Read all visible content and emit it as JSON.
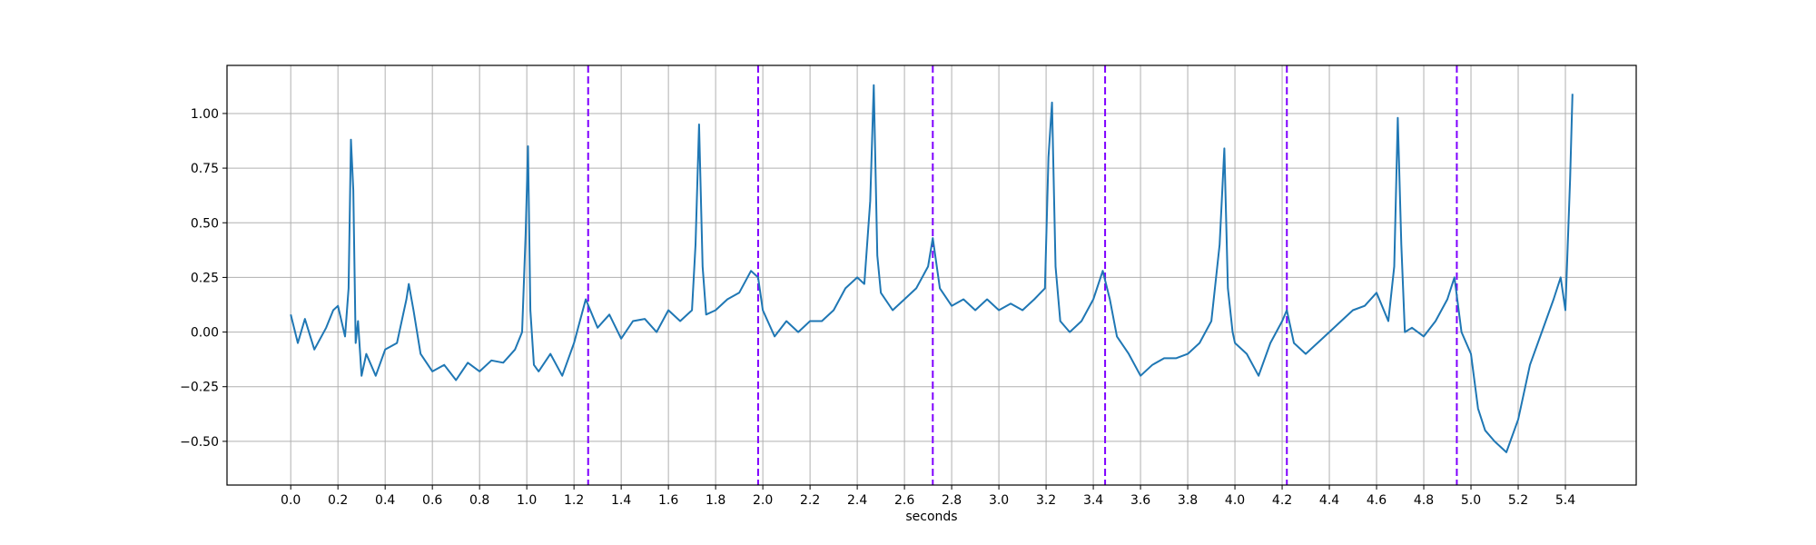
{
  "chart_data": {
    "type": "line",
    "title": "",
    "xlabel": "seconds",
    "ylabel": "",
    "xlim": [
      -0.27,
      5.7
    ],
    "ylim": [
      -0.7,
      1.22
    ],
    "grid": true,
    "xticks": [
      0.0,
      0.2,
      0.4,
      0.6,
      0.8,
      1.0,
      1.2,
      1.4,
      1.6,
      1.8,
      2.0,
      2.2,
      2.4,
      2.6,
      2.8,
      3.0,
      3.2,
      3.4,
      3.6,
      3.8,
      4.0,
      4.2,
      4.4,
      4.6,
      4.8,
      5.0,
      5.2,
      5.4
    ],
    "xtick_labels": [
      "0.0",
      "0.2",
      "0.4",
      "0.6",
      "0.8",
      "1.0",
      "1.2",
      "1.4",
      "1.6",
      "1.8",
      "2.0",
      "2.2",
      "2.4",
      "2.6",
      "2.8",
      "3.0",
      "3.2",
      "3.4",
      "3.6",
      "3.8",
      "4.0",
      "4.2",
      "4.4",
      "4.6",
      "4.8",
      "5.0",
      "5.2",
      "5.4"
    ],
    "yticks": [
      -0.5,
      -0.25,
      0.0,
      0.25,
      0.5,
      0.75,
      1.0
    ],
    "ytick_labels": [
      "−0.50",
      "−0.25",
      "0.00",
      "0.25",
      "0.50",
      "0.75",
      "1.00"
    ],
    "series": [
      {
        "color": "#1f77b4",
        "x": [
          0.0,
          0.03,
          0.06,
          0.1,
          0.15,
          0.18,
          0.2,
          0.23,
          0.245,
          0.255,
          0.265,
          0.275,
          0.285,
          0.3,
          0.32,
          0.36,
          0.4,
          0.45,
          0.49,
          0.5,
          0.52,
          0.55,
          0.6,
          0.65,
          0.7,
          0.75,
          0.8,
          0.85,
          0.9,
          0.95,
          0.98,
          0.995,
          1.005,
          1.015,
          1.03,
          1.05,
          1.1,
          1.15,
          1.2,
          1.25,
          1.3,
          1.35,
          1.4,
          1.45,
          1.5,
          1.55,
          1.6,
          1.65,
          1.7,
          1.715,
          1.73,
          1.745,
          1.76,
          1.8,
          1.85,
          1.9,
          1.95,
          1.98,
          2.0,
          2.05,
          2.1,
          2.15,
          2.2,
          2.25,
          2.3,
          2.35,
          2.4,
          2.43,
          2.455,
          2.47,
          2.485,
          2.5,
          2.55,
          2.6,
          2.65,
          2.7,
          2.72,
          2.75,
          2.8,
          2.85,
          2.9,
          2.95,
          3.0,
          3.05,
          3.1,
          3.15,
          3.195,
          3.21,
          3.225,
          3.24,
          3.26,
          3.3,
          3.35,
          3.4,
          3.44,
          3.47,
          3.5,
          3.55,
          3.6,
          3.65,
          3.7,
          3.75,
          3.8,
          3.85,
          3.9,
          3.935,
          3.955,
          3.97,
          3.99,
          4.0,
          4.05,
          4.1,
          4.15,
          4.2,
          4.22,
          4.25,
          4.3,
          4.35,
          4.4,
          4.45,
          4.5,
          4.55,
          4.6,
          4.65,
          4.675,
          4.69,
          4.705,
          4.72,
          4.75,
          4.8,
          4.85,
          4.9,
          4.93,
          4.96,
          5.0,
          5.03,
          5.06,
          5.1,
          5.15,
          5.2,
          5.25,
          5.3,
          5.35,
          5.38,
          5.4,
          5.42,
          5.43
        ],
        "y": [
          0.08,
          -0.05,
          0.06,
          -0.08,
          0.02,
          0.1,
          0.12,
          -0.02,
          0.2,
          0.88,
          0.65,
          -0.05,
          0.05,
          -0.2,
          -0.1,
          -0.2,
          -0.08,
          -0.05,
          0.15,
          0.22,
          0.1,
          -0.1,
          -0.18,
          -0.15,
          -0.22,
          -0.14,
          -0.18,
          -0.13,
          -0.14,
          -0.08,
          0.0,
          0.45,
          0.85,
          0.1,
          -0.15,
          -0.18,
          -0.1,
          -0.2,
          -0.05,
          0.15,
          0.02,
          0.08,
          -0.03,
          0.05,
          0.06,
          0.0,
          0.1,
          0.05,
          0.1,
          0.4,
          0.95,
          0.3,
          0.08,
          0.1,
          0.15,
          0.18,
          0.28,
          0.25,
          0.1,
          -0.02,
          0.05,
          0.0,
          0.05,
          0.05,
          0.1,
          0.2,
          0.25,
          0.22,
          0.6,
          1.13,
          0.35,
          0.18,
          0.1,
          0.15,
          0.2,
          0.3,
          0.43,
          0.2,
          0.12,
          0.15,
          0.1,
          0.15,
          0.1,
          0.13,
          0.1,
          0.15,
          0.2,
          0.8,
          1.05,
          0.3,
          0.05,
          0.0,
          0.05,
          0.15,
          0.28,
          0.15,
          -0.02,
          -0.1,
          -0.2,
          -0.15,
          -0.12,
          -0.12,
          -0.1,
          -0.05,
          0.05,
          0.4,
          0.84,
          0.2,
          0.0,
          -0.05,
          -0.1,
          -0.2,
          -0.05,
          0.05,
          0.1,
          -0.05,
          -0.1,
          -0.05,
          0.0,
          0.05,
          0.1,
          0.12,
          0.18,
          0.05,
          0.3,
          0.98,
          0.4,
          0.0,
          0.02,
          -0.02,
          0.05,
          0.15,
          0.25,
          0.0,
          -0.1,
          -0.35,
          -0.45,
          -0.5,
          -0.55,
          -0.4,
          -0.15,
          0.0,
          0.15,
          0.25,
          0.1,
          0.7,
          1.09
        ]
      }
    ],
    "vlines": {
      "color": "#7f00ff",
      "style": "dashed",
      "x": [
        1.26,
        1.98,
        2.72,
        3.45,
        4.22,
        4.94
      ]
    }
  }
}
